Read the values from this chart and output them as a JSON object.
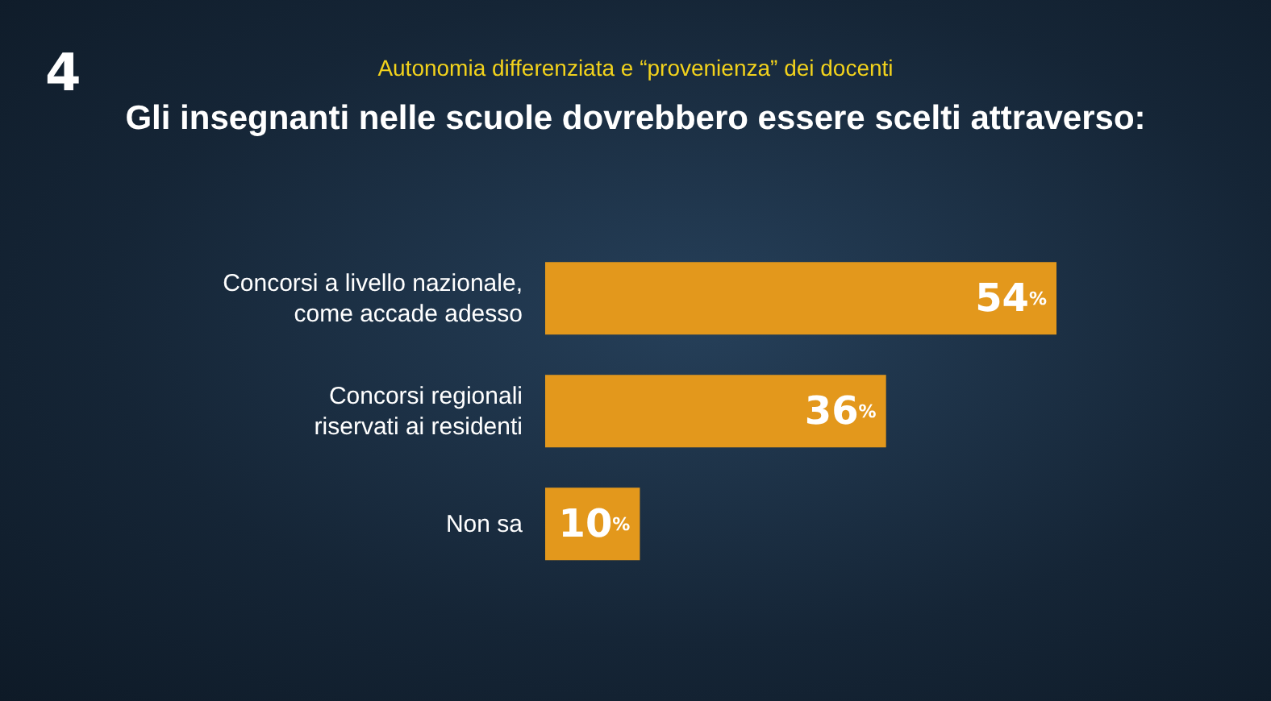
{
  "chart_data": {
    "type": "bar",
    "orientation": "horizontal",
    "subtitle": "Autonomia differenziata e “provenienza” dei docenti",
    "title": "Gli insegnanti nelle scuole dovrebbero essere scelti attraverso:",
    "categories": [
      "Concorsi a livello nazionale,\ncome accade adesso",
      "Concorsi regionali\nriservati ai residenti",
      "Non sa"
    ],
    "values": [
      54,
      36,
      10
    ],
    "value_labels": [
      "54%",
      "36%",
      "10%"
    ],
    "color": "#e3981c",
    "tick_labels": "y",
    "grid": false,
    "legend": false,
    "annotations": [
      "4"
    ]
  }
}
